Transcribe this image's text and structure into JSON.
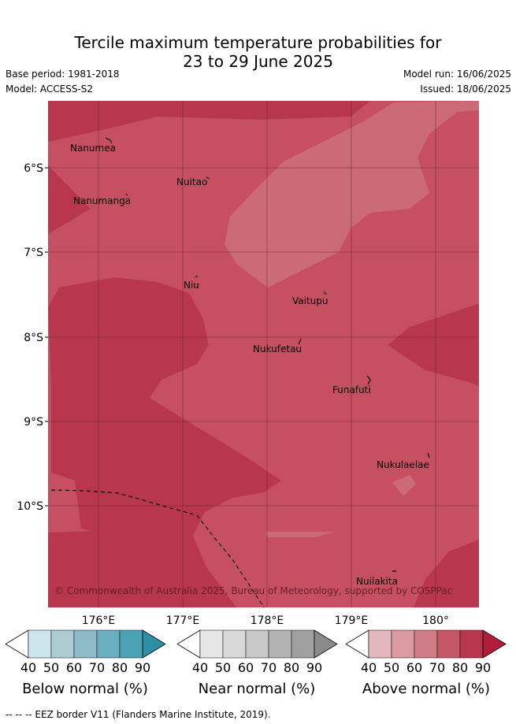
{
  "title": {
    "line1": "Tercile maximum temperature probabilities for",
    "line2": "23 to 29 June 2025"
  },
  "meta": {
    "base_period": "Base period: 1981-2018",
    "model": "Model: ACCESS-S2",
    "model_run": "Model run: 16/06/2025",
    "issued": "Issued: 18/06/2025"
  },
  "map": {
    "latitude_labels": [
      "6°S",
      "7°S",
      "8°S",
      "9°S",
      "10°S"
    ],
    "longitude_labels": [
      "176°E",
      "177°E",
      "178°E",
      "179°E",
      "180°"
    ],
    "places": [
      {
        "name": "Nanumea"
      },
      {
        "name": "Nuitao"
      },
      {
        "name": "Nanumanga"
      },
      {
        "name": "Niu"
      },
      {
        "name": "Vaitupu"
      },
      {
        "name": "Nukufetau"
      },
      {
        "name": "Funafuti"
      },
      {
        "name": "Nukulaelae"
      },
      {
        "name": "Nuilakita"
      }
    ],
    "copyright": "© Commonwealth of Australia 2025, Bureau of Meteorology, supported by COSPPac",
    "colors": {
      "above_70": "#c65061",
      "above_60": "#cc6a76",
      "above_80": "#b8374d",
      "eez_border": "#000000"
    }
  },
  "colorbars": [
    {
      "title": "Below normal (%)",
      "ticks": [
        "40",
        "50",
        "60",
        "70",
        "80",
        "90"
      ],
      "colors": [
        "#cde5ec",
        "#acccd2",
        "#8ebbc8",
        "#6aafbf",
        "#4aa2b4",
        "#2c8fa4"
      ]
    },
    {
      "title": "Near normal (%)",
      "ticks": [
        "40",
        "50",
        "60",
        "70",
        "80",
        "90"
      ],
      "colors": [
        "#e6e6e6",
        "#d9d9d9",
        "#c8c8c8",
        "#b3b3b3",
        "#9f9f9f",
        "#8a8a8a"
      ]
    },
    {
      "title": "Above normal (%)",
      "ticks": [
        "40",
        "50",
        "60",
        "70",
        "80",
        "90"
      ],
      "colors": [
        "#e4b7bf",
        "#d99aa2",
        "#cf7c86",
        "#c65766",
        "#b8374d",
        "#b01e3c"
      ]
    }
  ],
  "footer": "--  --  -- EEZ border V11 (Flanders Marine Institute, 2019)."
}
